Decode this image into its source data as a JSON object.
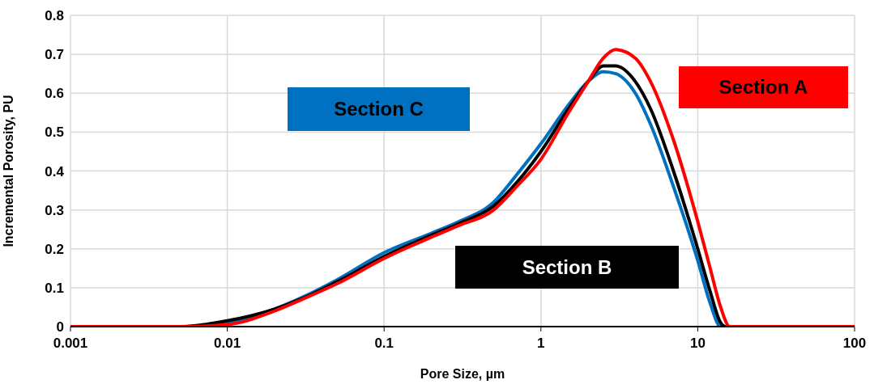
{
  "chart_data": {
    "type": "line",
    "xlabel": "Pore Size, µm",
    "ylabel": "Incremental Porosity, PU",
    "log": "x",
    "xlim": [
      0.001,
      100
    ],
    "xticks": [
      0.001,
      0.01,
      0.1,
      1,
      10,
      100
    ],
    "ylim": [
      0,
      0.8
    ],
    "yticks": [
      0,
      0.1,
      0.2,
      0.3,
      0.4,
      0.5,
      0.6,
      0.7,
      0.8
    ],
    "grid": true,
    "legend": false,
    "marker": "none",
    "line_style": "solid",
    "series": [
      {
        "name": "Section A",
        "color": "#ff0000",
        "x": [
          0.001,
          0.005,
          0.01,
          0.02,
          0.03,
          0.05,
          0.1,
          0.2,
          0.3,
          0.5,
          0.7,
          1,
          1.5,
          2,
          2.5,
          3,
          4,
          5,
          7,
          10,
          12,
          14,
          16,
          20,
          100
        ],
        "values": [
          0,
          0,
          0.005,
          0.04,
          0.07,
          0.11,
          0.175,
          0.23,
          0.26,
          0.3,
          0.36,
          0.43,
          0.55,
          0.63,
          0.69,
          0.712,
          0.69,
          0.63,
          0.48,
          0.27,
          0.15,
          0.05,
          0,
          0,
          0
        ]
      },
      {
        "name": "Section B",
        "color": "#000000",
        "x": [
          0.001,
          0.005,
          0.01,
          0.02,
          0.03,
          0.05,
          0.1,
          0.2,
          0.3,
          0.5,
          0.7,
          1,
          1.5,
          2,
          2.5,
          3,
          4,
          5,
          7,
          10,
          12,
          14,
          15,
          20,
          100
        ],
        "values": [
          0,
          0,
          0.015,
          0.045,
          0.072,
          0.115,
          0.18,
          0.235,
          0.265,
          0.31,
          0.37,
          0.45,
          0.56,
          0.63,
          0.67,
          0.67,
          0.63,
          0.56,
          0.4,
          0.2,
          0.09,
          0.01,
          0,
          0,
          0
        ]
      },
      {
        "name": "Section C",
        "color": "#0070c0",
        "x": [
          0.001,
          0.005,
          0.01,
          0.02,
          0.03,
          0.05,
          0.1,
          0.2,
          0.3,
          0.5,
          0.7,
          1,
          1.5,
          2,
          2.5,
          3,
          4,
          5,
          7,
          10,
          12,
          14,
          20,
          100
        ],
        "values": [
          0,
          0,
          0.01,
          0.045,
          0.075,
          0.12,
          0.19,
          0.24,
          0.27,
          0.32,
          0.39,
          0.47,
          0.57,
          0.63,
          0.655,
          0.65,
          0.6,
          0.52,
          0.36,
          0.17,
          0.06,
          0,
          0,
          0
        ]
      }
    ]
  }
}
